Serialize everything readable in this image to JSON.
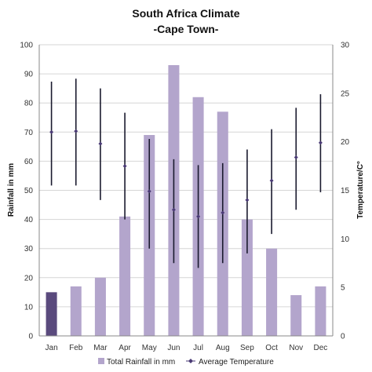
{
  "chart_data": {
    "type": "bar",
    "title": "South Africa Climate",
    "subtitle": "-Cape Town-",
    "categories": [
      "Jan",
      "Feb",
      "Mar",
      "Apr",
      "May",
      "Jun",
      "Jul",
      "Aug",
      "Sep",
      "Oct",
      "Nov",
      "Dec"
    ],
    "ylabel": "Rainfall in mm",
    "ylim": [
      0,
      100
    ],
    "yticks": [
      "0",
      "10",
      "20",
      "30",
      "40",
      "50",
      "60",
      "70",
      "80",
      "90",
      "100"
    ],
    "y2label": "Temperature/C°",
    "y2lim": [
      0,
      30
    ],
    "y2ticks": [
      "0",
      "5",
      "10",
      "15",
      "20",
      "25",
      "30"
    ],
    "series": [
      {
        "name": "Total Rainfall in mm",
        "type": "bar",
        "axis": "left",
        "values": [
          15,
          17,
          20,
          41,
          69,
          93,
          82,
          77,
          40,
          30,
          14,
          17
        ],
        "color": "#b3a5cc",
        "highlight_color": "#5a4a7d",
        "highlight_index": 0
      },
      {
        "name": "Average Temperature",
        "type": "point_range",
        "axis": "right",
        "values": [
          21.0,
          21.1,
          19.8,
          17.5,
          14.9,
          13.0,
          12.3,
          12.7,
          14.0,
          16.0,
          18.4,
          19.9
        ],
        "low": [
          15.5,
          15.5,
          14.0,
          12.0,
          9.0,
          7.5,
          7.0,
          7.5,
          8.5,
          10.5,
          13.0,
          14.8
        ],
        "high": [
          26.2,
          26.5,
          25.5,
          23.0,
          20.3,
          18.2,
          17.6,
          17.8,
          19.2,
          21.3,
          23.5,
          24.9
        ],
        "color": "#1a1a2e",
        "marker_color": "#4a3a75"
      }
    ],
    "grid": true,
    "grid_color": "#d6d6d6",
    "legend_position": "bottom"
  }
}
